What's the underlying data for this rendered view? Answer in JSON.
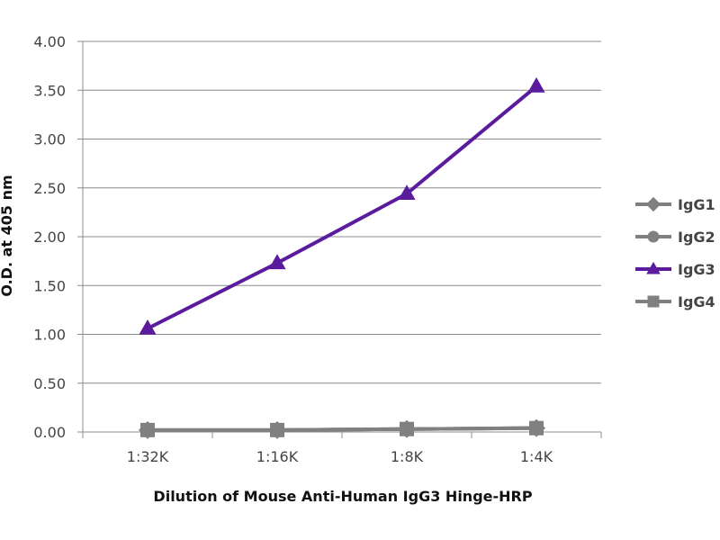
{
  "chart_data": {
    "type": "line",
    "categories": [
      "1:32K",
      "1:16K",
      "1:8K",
      "1:4K"
    ],
    "series": [
      {
        "name": "IgG1",
        "marker": "diamond",
        "color": "#808080",
        "values": [
          0.02,
          0.02,
          0.03,
          0.04
        ]
      },
      {
        "name": "IgG2",
        "marker": "circle",
        "color": "#808080",
        "values": [
          0.02,
          0.02,
          0.03,
          0.04
        ]
      },
      {
        "name": "IgG3",
        "marker": "triangle",
        "color": "#5b1b9e",
        "values": [
          1.06,
          1.73,
          2.44,
          3.54
        ]
      },
      {
        "name": "IgG4",
        "marker": "square",
        "color": "#808080",
        "values": [
          0.02,
          0.02,
          0.03,
          0.04
        ]
      }
    ],
    "xlabel": "Dilution of Mouse Anti-Human IgG3 Hinge-HRP",
    "ylabel": "O.D. at 405 nm",
    "ylim": [
      0,
      4
    ],
    "yticks": [
      "0.00",
      "0.50",
      "1.00",
      "1.50",
      "2.00",
      "2.50",
      "3.00",
      "3.50",
      "4.00"
    ],
    "grid": true,
    "legend": "right"
  }
}
